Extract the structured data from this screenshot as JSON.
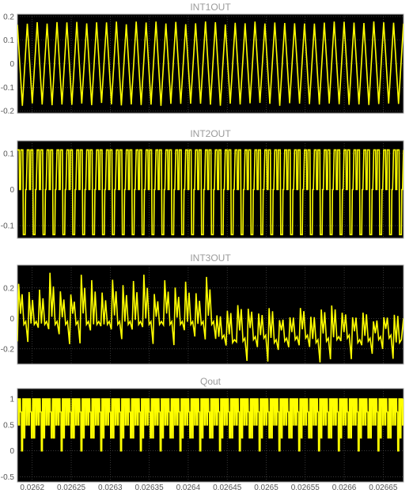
{
  "chart_data": {
    "type": "line",
    "time_ticks": [
      "0.0262",
      "0.02625",
      "0.0263",
      "0.02635",
      "0.0264",
      "0.02645",
      "0.0265",
      "0.02655",
      "0.0266",
      "0.02665"
    ],
    "time_tick_values": [
      0.0262,
      0.02625,
      0.0263,
      0.02635,
      0.0264,
      0.02645,
      0.0265,
      0.02655,
      0.0266,
      0.02665
    ],
    "xlim": [
      0.026181,
      0.026676
    ],
    "grid": true,
    "background": "#000000",
    "trace_color": "#ffff00",
    "grid_color": "#5a5a5a",
    "panels": [
      {
        "title": "INT1OUT",
        "ylim": [
          -0.21,
          0.21
        ],
        "yticks": [
          -0.2,
          -0.1,
          0,
          0.1,
          0.2
        ],
        "ytick_labels": [
          "-0.2",
          "-0.1",
          "0",
          "0.1",
          "0.2"
        ],
        "waveform": "triangle",
        "cycles": 39,
        "amplitude": 0.18
      },
      {
        "title": "INT2OUT",
        "ylim": [
          -0.135,
          0.135
        ],
        "yticks": [
          -0.1,
          0,
          0.1
        ],
        "ytick_labels": [
          "-0.1",
          "0",
          "0.1"
        ],
        "waveform": "notched-square",
        "cycles": 39,
        "high": 0.11,
        "low": -0.125
      },
      {
        "title": "INT3OUT",
        "ylim": [
          -0.3,
          0.35
        ],
        "yticks": [
          -0.2,
          0,
          0.2
        ],
        "ytick_labels": [
          "-0.2",
          "0",
          "0.2"
        ],
        "waveform": "sawtooth-drift",
        "cycles": 37
      },
      {
        "title": "Qout",
        "ylim": [
          -0.6,
          1.2
        ],
        "yticks": [
          -0.5,
          0,
          0.5,
          1
        ],
        "ytick_labels": [
          "-0.5",
          "0",
          "0.5",
          "1"
        ],
        "waveform": "multilevel-pulse",
        "cycles": 39,
        "levels": [
          1.0,
          0.75,
          0.5,
          0.25,
          0.0
        ]
      }
    ]
  }
}
